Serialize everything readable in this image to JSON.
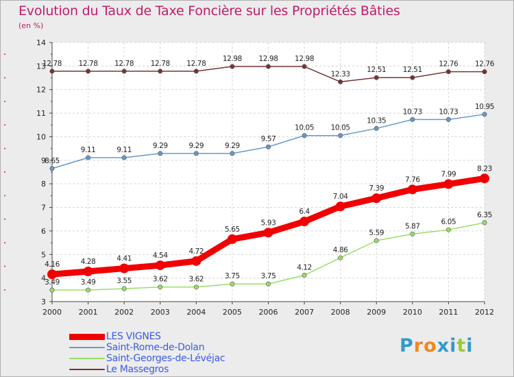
{
  "chart_data": {
    "type": "line",
    "title": "Evolution du Taux de Taxe Foncière sur les Propriétés Bâties",
    "subtitle": "(en %)",
    "x": [
      "2000",
      "2001",
      "2002",
      "2003",
      "2004",
      "2005",
      "2006",
      "2007",
      "2008",
      "2009",
      "2010",
      "2011",
      "2012"
    ],
    "ylim": [
      3,
      14
    ],
    "yticks": [
      "3",
      "4",
      "5",
      "6",
      "7",
      "8",
      "9",
      "10",
      "11",
      "12",
      "13",
      "14"
    ],
    "grid": true,
    "legend_position": "bottom-left",
    "series": [
      {
        "name": "LES VIGNES",
        "color": "#f00000",
        "values": [
          4.16,
          4.28,
          4.41,
          4.54,
          4.72,
          5.65,
          5.93,
          6.4,
          7.04,
          7.39,
          7.76,
          7.99,
          8.23
        ],
        "labels": [
          "4.16",
          "4.28",
          "4.41",
          "4.54",
          "4.72",
          "5.65",
          "5.93",
          "6.4",
          "7.04",
          "7.39",
          "7.76",
          "7.99",
          "8.23"
        ]
      },
      {
        "name": "Saint-Rome-de-Dolan",
        "color": "#6699cc",
        "values": [
          8.65,
          9.11,
          9.11,
          9.29,
          9.29,
          9.29,
          9.57,
          10.05,
          10.05,
          10.35,
          10.73,
          10.73,
          10.95
        ],
        "labels": [
          "8.65",
          "9.11",
          "9.11",
          "9.29",
          "9.29",
          "9.29",
          "9.57",
          "10.05",
          "10.05",
          "10.35",
          "10.73",
          "10.73",
          "10.95"
        ]
      },
      {
        "name": "Saint-Georges-de-Lévéjac",
        "color": "#99dd66",
        "values": [
          3.49,
          3.49,
          3.55,
          3.62,
          3.62,
          3.75,
          3.75,
          4.12,
          4.86,
          5.59,
          5.87,
          6.05,
          6.35
        ],
        "labels": [
          "3.49",
          "3.49",
          "3.55",
          "3.62",
          "3.62",
          "3.75",
          "3.75",
          "4.12",
          "4.86",
          "5.59",
          "5.87",
          "6.05",
          "6.35"
        ]
      },
      {
        "name": "Le Massegros",
        "color": "#773333",
        "values": [
          12.78,
          12.78,
          12.78,
          12.78,
          12.78,
          12.98,
          12.98,
          12.98,
          12.33,
          12.51,
          12.51,
          12.76,
          12.76
        ],
        "labels": [
          "12.78",
          "12.78",
          "12.78",
          "12.78",
          "12.78",
          "12.98",
          "12.98",
          "12.98",
          "12.33",
          "12.51",
          "12.51",
          "12.76",
          "12.76"
        ]
      }
    ]
  },
  "logo": {
    "letters": [
      "P",
      "r",
      "o",
      "x",
      "i",
      "t",
      "i"
    ],
    "colors": [
      "#3399cc",
      "#ee8822",
      "#ee8822",
      "#3399cc",
      "#3399cc",
      "#99cc33",
      "#3399cc"
    ]
  }
}
